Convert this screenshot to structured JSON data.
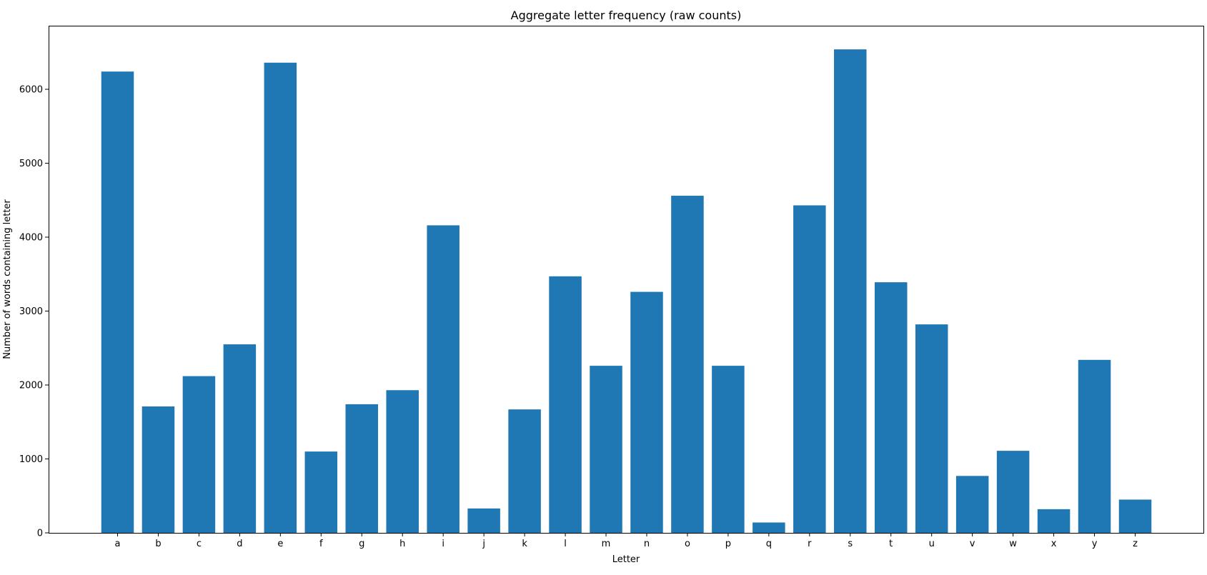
{
  "chart_data": {
    "type": "bar",
    "title": "Aggregate letter frequency (raw counts)",
    "xlabel": "Letter",
    "ylabel": "Number of words containing letter",
    "categories": [
      "a",
      "b",
      "c",
      "d",
      "e",
      "f",
      "g",
      "h",
      "i",
      "j",
      "k",
      "l",
      "m",
      "n",
      "o",
      "p",
      "q",
      "r",
      "s",
      "t",
      "u",
      "v",
      "w",
      "x",
      "y",
      "z"
    ],
    "values": [
      6240,
      1710,
      2120,
      2550,
      6360,
      1100,
      1740,
      1930,
      4160,
      330,
      1670,
      3470,
      2260,
      3260,
      4560,
      2260,
      140,
      4430,
      6540,
      3390,
      2820,
      770,
      1110,
      320,
      2340,
      450
    ],
    "yticks": [
      0,
      1000,
      2000,
      3000,
      4000,
      5000,
      6000
    ],
    "ylim": [
      0,
      6860
    ],
    "bar_color": "#1f77b4",
    "grid": false,
    "legend": "none"
  }
}
